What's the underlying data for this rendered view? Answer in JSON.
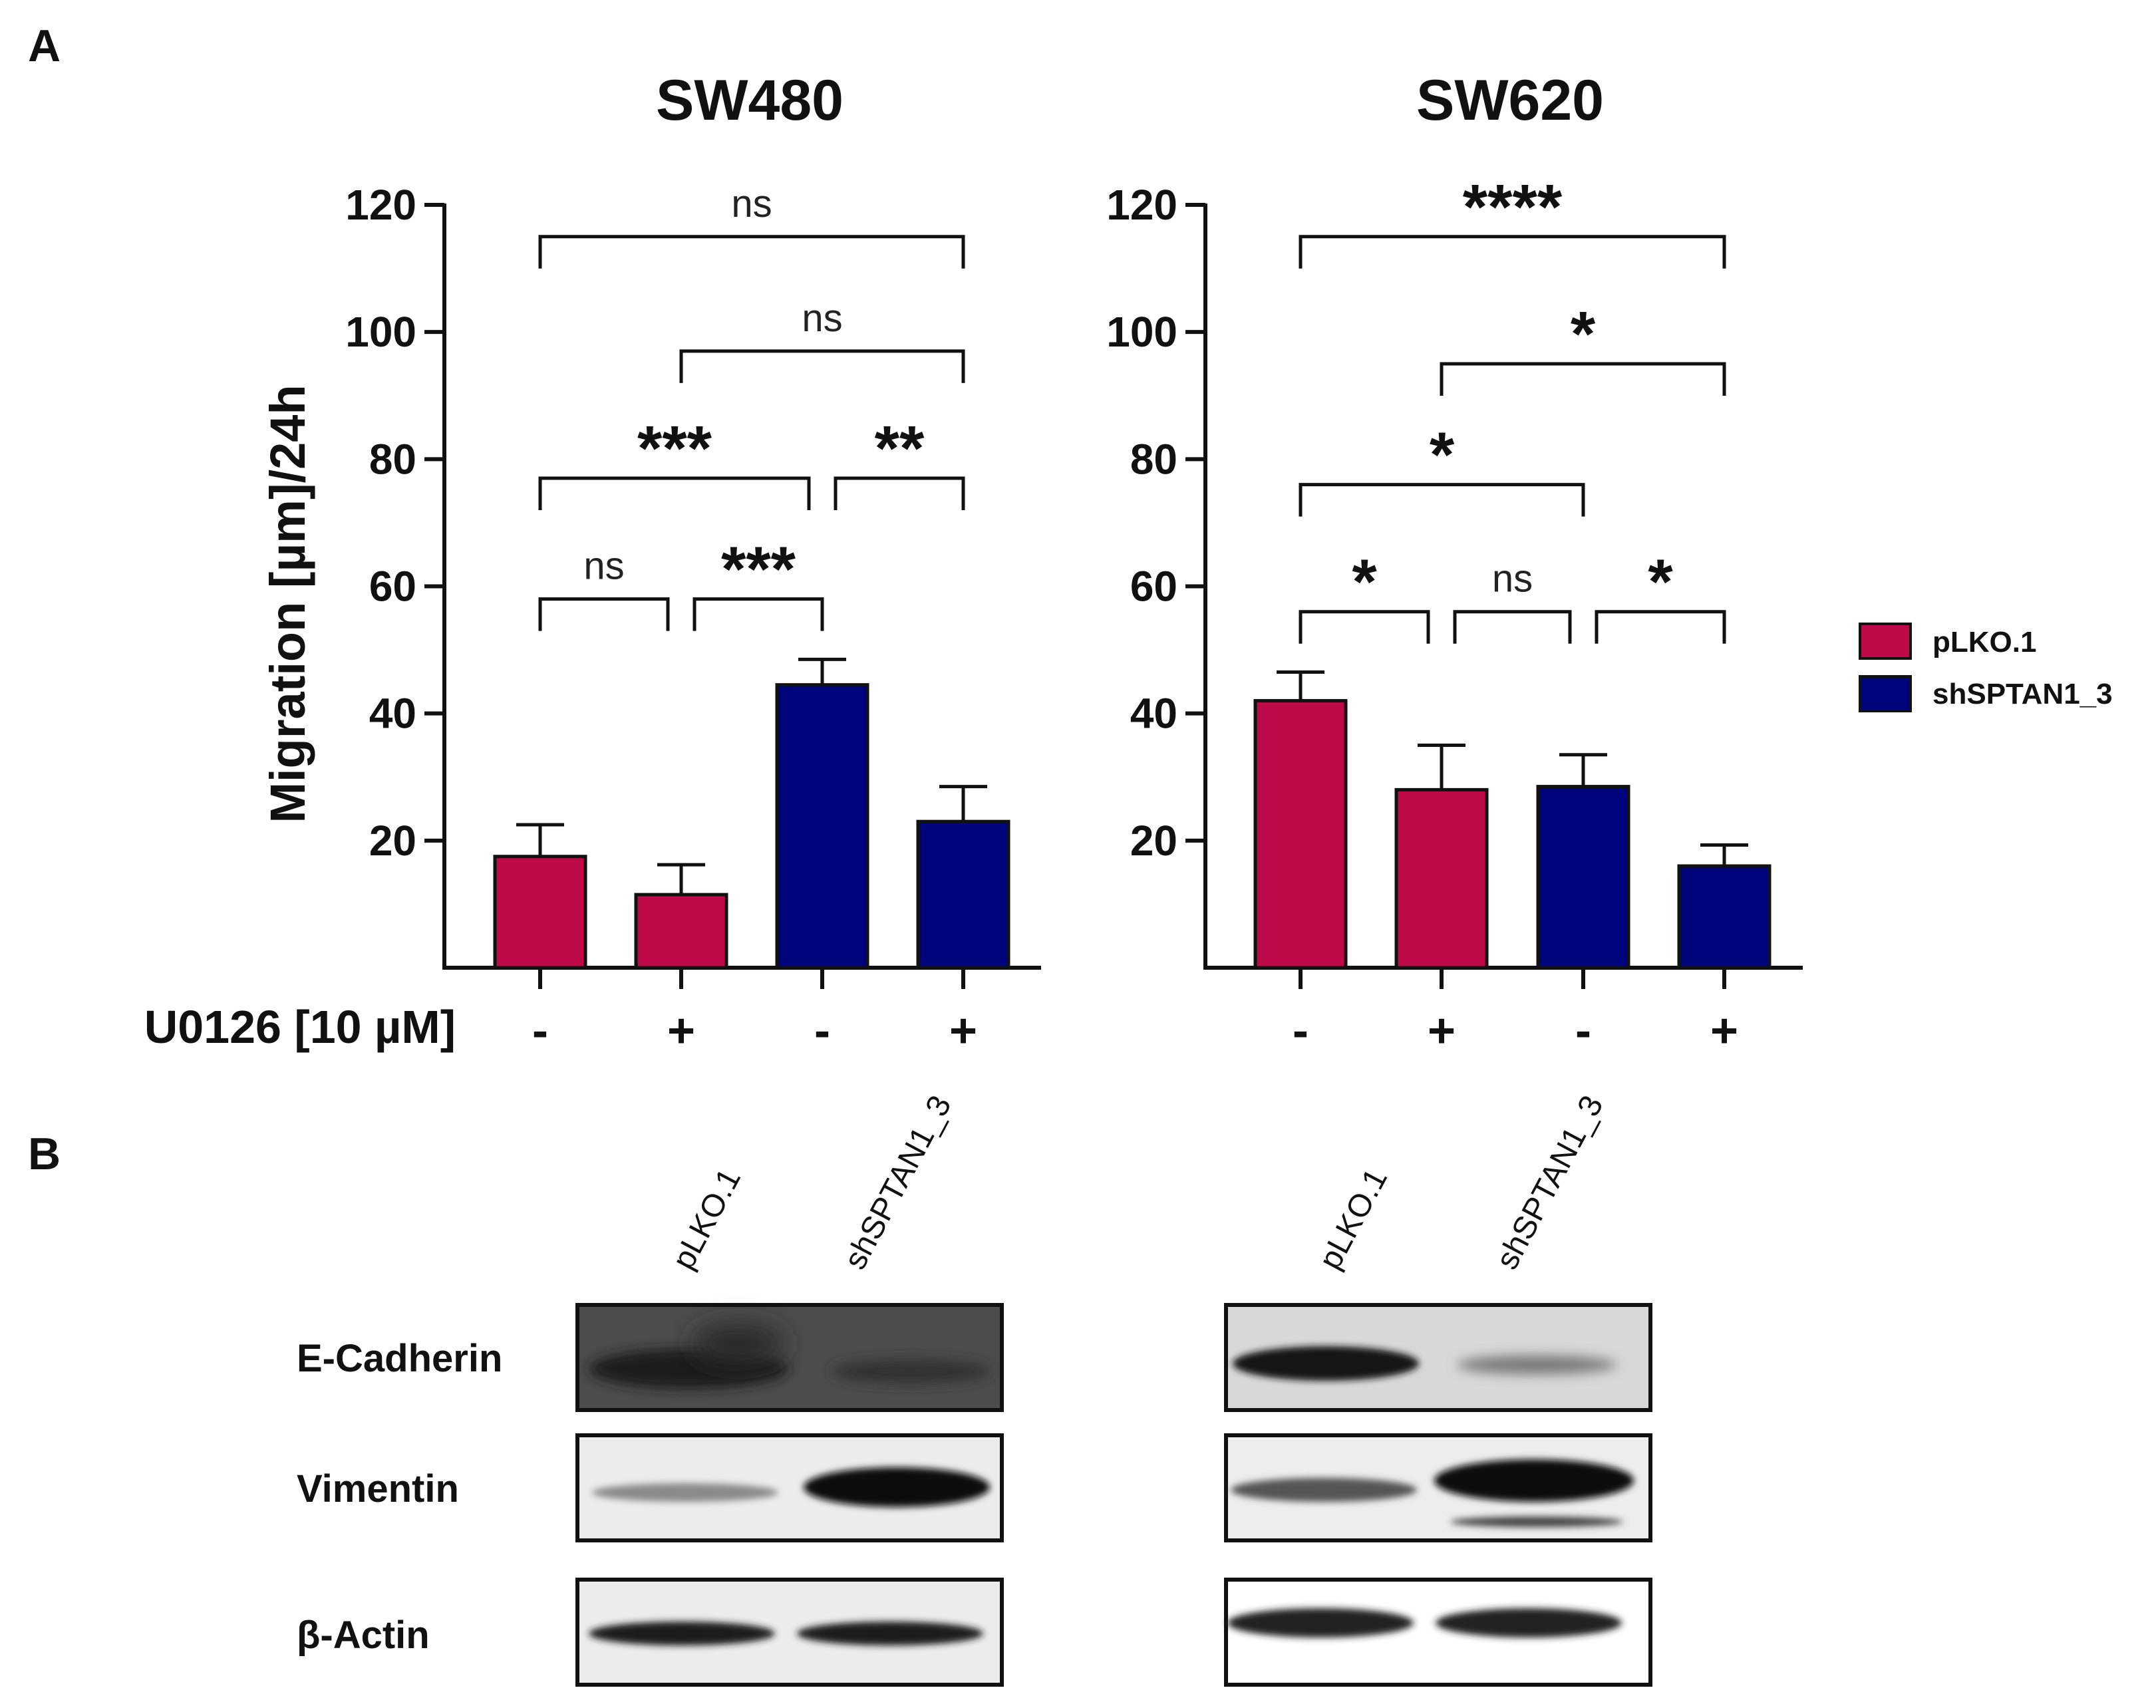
{
  "panel_labels": {
    "a": "A",
    "b": "B"
  },
  "legend": [
    {
      "name": "pLKO.1",
      "color": "#BE0A4B"
    },
    {
      "name": "shSPTAN1_3",
      "color": "#00047A"
    }
  ],
  "condition_label": "U0126 [10 µM]",
  "chart_data": [
    {
      "type": "bar",
      "title": "SW480",
      "ylabel": "Migration [µm]/24h",
      "ylim": [
        0,
        120
      ],
      "yticks": [
        "20",
        "40",
        "60",
        "80",
        "100",
        "120"
      ],
      "categories": [
        "-",
        "+",
        "-",
        "+"
      ],
      "series_per_bar": [
        "pLKO.1",
        "pLKO.1",
        "shSPTAN1_3",
        "shSPTAN1_3"
      ],
      "values": [
        17.5,
        11.5,
        44.5,
        23.0
      ],
      "errors": [
        5.0,
        4.7,
        4.0,
        5.5
      ],
      "significance": [
        {
          "from": 0,
          "to": 3,
          "label": "ns",
          "y": 115
        },
        {
          "from": 1,
          "to": 3,
          "label": "ns",
          "y": 97
        },
        {
          "from": 0,
          "to": 2,
          "label": "***",
          "y": 77
        },
        {
          "from": 2,
          "to": 3,
          "label": "**",
          "y": 77
        },
        {
          "from": 0,
          "to": 1,
          "label": "ns",
          "y": 58
        },
        {
          "from": 1,
          "to": 2,
          "label": "***",
          "y": 58
        }
      ]
    },
    {
      "type": "bar",
      "title": "SW620",
      "ylabel": "",
      "ylim": [
        0,
        120
      ],
      "yticks": [
        "20",
        "40",
        "60",
        "80",
        "100",
        "120"
      ],
      "categories": [
        "-",
        "+",
        "-",
        "+"
      ],
      "series_per_bar": [
        "pLKO.1",
        "pLKO.1",
        "shSPTAN1_3",
        "shSPTAN1_3"
      ],
      "values": [
        42.0,
        28.0,
        28.5,
        16.0
      ],
      "errors": [
        4.5,
        7.0,
        5.0,
        3.3
      ],
      "significance": [
        {
          "from": 0,
          "to": 3,
          "label": "****",
          "y": 115
        },
        {
          "from": 1,
          "to": 3,
          "label": "*",
          "y": 95
        },
        {
          "from": 0,
          "to": 2,
          "label": "*",
          "y": 76
        },
        {
          "from": 0,
          "to": 1,
          "label": "*",
          "y": 56
        },
        {
          "from": 1,
          "to": 2,
          "label": "ns",
          "y": 56
        },
        {
          "from": 2,
          "to": 3,
          "label": "*",
          "y": 56
        }
      ]
    }
  ],
  "western_blot": {
    "lanes": [
      "pLKO.1",
      "shSPTAN1_3"
    ],
    "rows": [
      "E-Cadherin",
      "Vimentin",
      "β-Actin"
    ]
  }
}
